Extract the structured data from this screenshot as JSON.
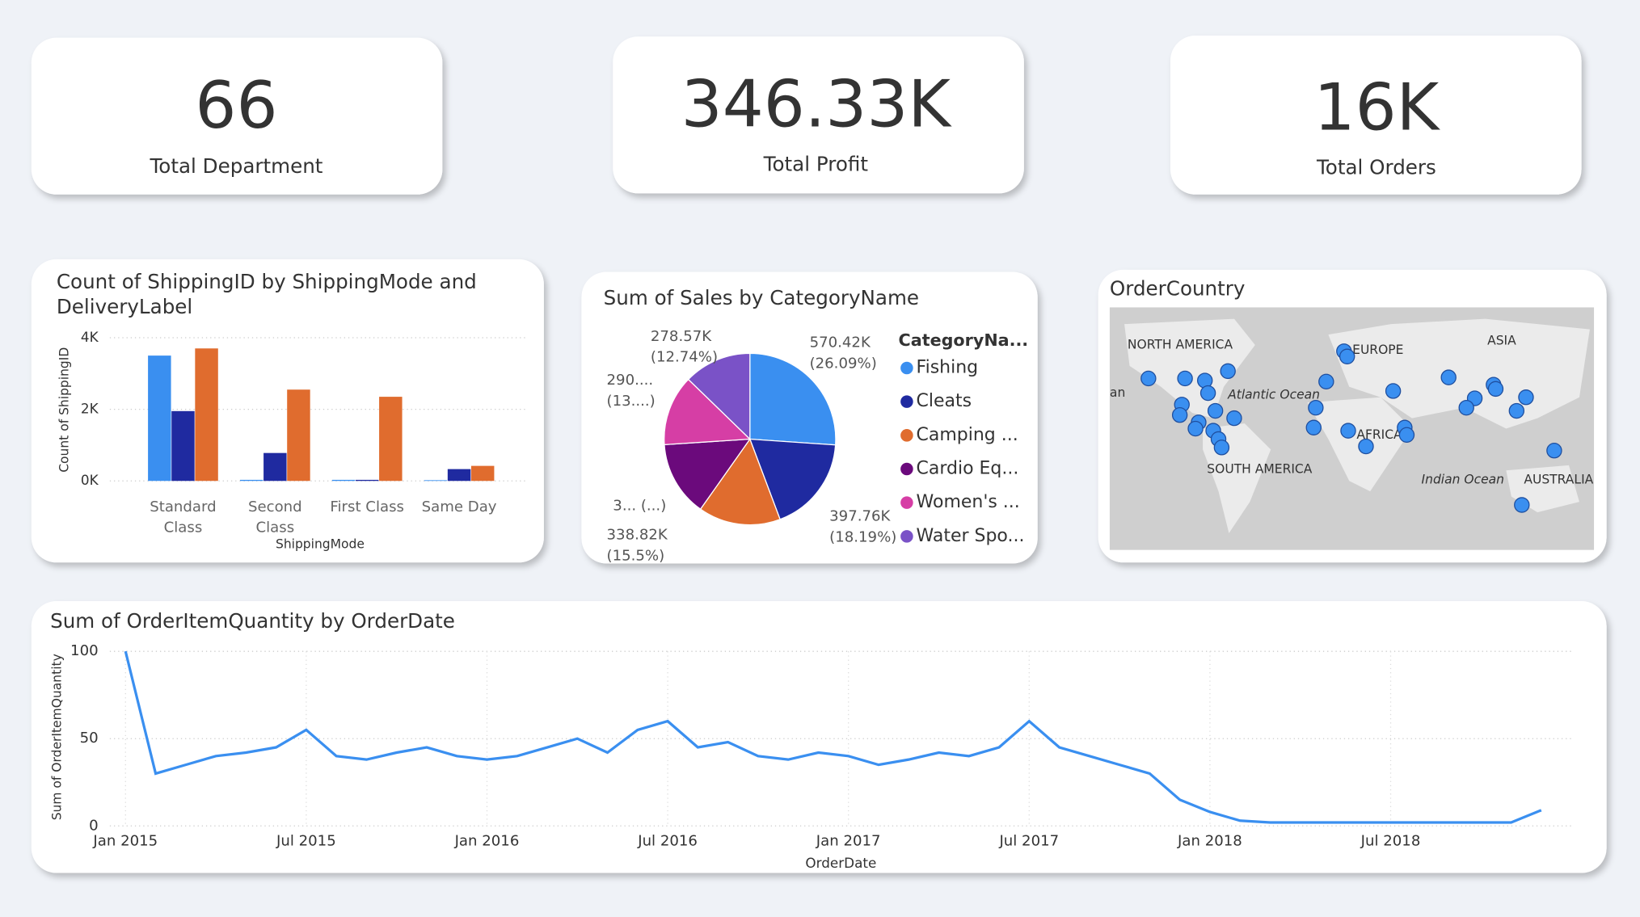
{
  "cards": [
    {
      "value": "66",
      "label": "Total Department"
    },
    {
      "value": "346.33K",
      "label": "Total Profit"
    },
    {
      "value": "16K",
      "label": "Total Orders"
    }
  ],
  "chart_data": [
    {
      "type": "bar",
      "title": "Count of ShippingID by ShippingMode and DeliveryLabel",
      "x_label": "ShippingMode",
      "y_label": "Count of ShippingID",
      "categories": [
        "Standard Class",
        "Second Class",
        "First Class",
        "Same Day"
      ],
      "series": [
        {
          "color": "#3a8ff0",
          "values": [
            3500,
            30,
            30,
            20
          ]
        },
        {
          "color": "#1f2aa0",
          "values": [
            1950,
            780,
            30,
            330
          ]
        },
        {
          "color": "#e06c2e",
          "values": [
            3700,
            2550,
            2350,
            420
          ]
        }
      ],
      "ylim": [
        0,
        4000
      ],
      "yticks": [
        {
          "value": 0,
          "label": "0K"
        },
        {
          "value": 2000,
          "label": "2K"
        },
        {
          "value": 4000,
          "label": "4K"
        }
      ],
      "grid": true
    },
    {
      "type": "pie",
      "title": "Sum of Sales by CategoryName",
      "legend_title": "CategoryNa...",
      "categories": [
        "Fishing",
        "Cleats",
        "Camping ...",
        "Cardio Eq...",
        "Women's ...",
        "Water Spo..."
      ],
      "colors": [
        "#3a8ff0",
        "#1f2aa0",
        "#e06c2e",
        "#6b0a7c",
        "#d63ea5",
        "#7a52c7"
      ],
      "values": [
        570420,
        397760,
        338820,
        310300,
        290500,
        278570
      ],
      "value_labels": [
        "570.42K (26.09%)",
        "397.76K (18.19%)",
        "338.82K (15.5%)",
        "3... (...)",
        "290.... (13....)",
        "278.57K (12.74%)"
      ]
    },
    {
      "type": "map",
      "title": "OrderCountry",
      "labels": [
        "NORTH AMERICA",
        "EUROPE",
        "ASIA",
        "Atlantic Ocean",
        "AFRICA",
        "SOUTH AMERICA",
        "Indian Ocean",
        "AUSTRALIA",
        "an"
      ],
      "color": "#3a8ff0"
    },
    {
      "type": "line",
      "title": "Sum of OrderItemQuantity by OrderDate",
      "x_label": "OrderDate",
      "y_label": "Sum of OrderItemQuantity",
      "color": "#3a8ff0",
      "x": [
        "Jan 2015",
        "Feb 2015",
        "Mar 2015",
        "Apr 2015",
        "May 2015",
        "Jun 2015",
        "Jul 2015",
        "Aug 2015",
        "Sep 2015",
        "Oct 2015",
        "Nov 2015",
        "Dec 2015",
        "Jan 2016",
        "Feb 2016",
        "Mar 2016",
        "Apr 2016",
        "May 2016",
        "Jun 2016",
        "Jul 2016",
        "Aug 2016",
        "Sep 2016",
        "Oct 2016",
        "Nov 2016",
        "Dec 2016",
        "Jan 2017",
        "Feb 2017",
        "Mar 2017",
        "Apr 2017",
        "May 2017",
        "Jun 2017",
        "Jul 2017",
        "Aug 2017",
        "Sep 2017",
        "Oct 2017",
        "Nov 2017",
        "Dec 2017",
        "Jan 2018",
        "Feb 2018",
        "Mar 2018",
        "Apr 2018",
        "May 2018",
        "Jun 2018",
        "Jul 2018",
        "Aug 2018",
        "Sep 2018",
        "Oct 2018",
        "Nov 2018",
        "Dec 2018"
      ],
      "values": [
        100,
        30,
        35,
        40,
        42,
        45,
        55,
        40,
        38,
        42,
        45,
        40,
        38,
        40,
        45,
        50,
        42,
        55,
        60,
        45,
        48,
        40,
        38,
        42,
        40,
        35,
        38,
        42,
        40,
        45,
        60,
        45,
        40,
        35,
        30,
        15,
        8,
        3,
        2,
        2,
        2,
        2,
        2,
        2,
        2,
        2,
        2,
        9
      ],
      "xticks": [
        "Jan 2015",
        "Jul 2015",
        "Jan 2016",
        "Jul 2016",
        "Jan 2017",
        "Jul 2017",
        "Jan 2018",
        "Jul 2018"
      ],
      "ylim": [
        0,
        100
      ],
      "yticks": [
        0,
        50,
        100
      ],
      "grid": true
    }
  ]
}
